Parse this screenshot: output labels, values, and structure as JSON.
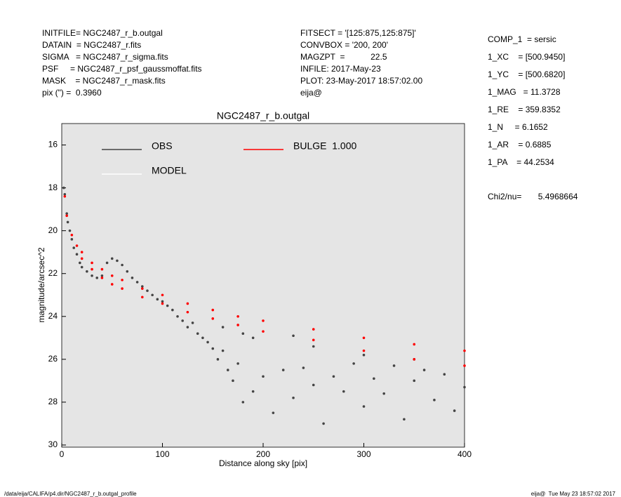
{
  "header": {
    "left": [
      "INITFILE= NGC2487_r_b.outgal",
      "DATAIN  = NGC2487_r.fits",
      "SIGMA   = NGC2487_r_sigma.fits",
      "PSF     = NGC2487_r_psf_gaussmoffat.fits",
      "MASK    = NGC2487_r_mask.fits",
      "pix (\") =  0.3960"
    ],
    "middle": [
      "FITSECT = '[125:875,125:875]'",
      "CONVBOX = '200, 200'",
      "MAGZPT  =           22.5",
      "INFILE: 2017-May-23",
      "PLOT: 23-May-2017 18:57:02.00",
      "eija@"
    ],
    "right": [
      "COMP_1  = sersic",
      "1_XC    = [500.9450]",
      "1_YC    = [500.6820]",
      "1_MAG   = 11.3728",
      "1_RE    = 359.8352",
      "1_N     = 6.1652",
      "1_AR    = 0.6885",
      "1_PA    = 44.2534"
    ],
    "chi2": "Chi2/nu=       5.4968664"
  },
  "footer": {
    "left": "/data/eija/CALIFA/p4.dir/NGC2487_r_b.outgal_profile",
    "right": "eija@  Tue May 23 18:57:02 2017"
  },
  "chart_data": {
    "type": "scatter",
    "title": "NGC2487_r_b.outgal",
    "x_label": "Distance along sky [pix]",
    "y_label": "magnitude/arcsec^2",
    "xlim": [
      0,
      400
    ],
    "ylim": [
      30.1,
      15
    ],
    "xticks": [
      0,
      100,
      200,
      300,
      400
    ],
    "yticks": [
      16,
      18,
      20,
      22,
      24,
      26,
      28,
      30
    ],
    "background": "#e5e5e5",
    "series": [
      {
        "name": "OBS",
        "color": "#444444",
        "x": [
          2,
          3,
          5,
          6,
          8,
          10,
          12,
          15,
          18,
          20,
          25,
          30,
          35,
          40,
          45,
          50,
          55,
          60,
          65,
          70,
          75,
          80,
          85,
          90,
          95,
          100,
          105,
          110,
          115,
          120,
          125,
          130,
          135,
          140,
          145,
          150,
          155,
          160,
          165,
          170,
          175,
          180,
          190,
          200,
          210,
          220,
          230,
          240,
          250,
          260,
          270,
          280,
          290,
          300,
          310,
          320,
          330,
          340,
          350,
          360,
          370,
          380,
          390,
          400,
          190,
          250,
          300,
          350,
          230,
          160,
          180
        ],
        "y": [
          18,
          18.3,
          19.2,
          19.6,
          20,
          20.4,
          20.8,
          21.1,
          21.5,
          21.7,
          21.9,
          22.1,
          22.2,
          22.1,
          21.5,
          21.3,
          21.4,
          21.6,
          21.9,
          22.2,
          22.4,
          22.6,
          22.8,
          23,
          23.2,
          23.3,
          23.5,
          23.7,
          24,
          24.2,
          24.5,
          24.3,
          24.8,
          25,
          25.2,
          25.5,
          26,
          25.6,
          26.5,
          27,
          26.2,
          28,
          27.5,
          26.8,
          28.5,
          26.5,
          27.8,
          26.4,
          27.2,
          29,
          26.8,
          27.5,
          26.2,
          28.2,
          26.9,
          27.6,
          26.3,
          28.8,
          27,
          26.5,
          27.9,
          26.7,
          28.4,
          27.3,
          25,
          25.4,
          25.8,
          26,
          24.9,
          24.5,
          24.8
        ]
      },
      {
        "name": "MODEL",
        "color": "#ffffff",
        "x": [],
        "y": []
      },
      {
        "name": "BULGE  1.000",
        "color": "#ff0000",
        "x": [
          3,
          5,
          10,
          15,
          20,
          30,
          40,
          50,
          60,
          80,
          100,
          125,
          150,
          175,
          200,
          250,
          300,
          350,
          400,
          20,
          30,
          40,
          50,
          60,
          80,
          100,
          125,
          150,
          175,
          200,
          250,
          300,
          350,
          400
        ],
        "y": [
          18.4,
          19.3,
          20.2,
          20.7,
          21.0,
          21.5,
          21.8,
          22.1,
          22.3,
          22.7,
          23.0,
          23.4,
          23.7,
          24.0,
          24.2,
          24.6,
          25.0,
          25.3,
          25.6,
          21.3,
          21.8,
          22.2,
          22.5,
          22.7,
          23.1,
          23.4,
          23.8,
          24.1,
          24.4,
          24.7,
          25.1,
          25.6,
          26.0,
          26.3
        ]
      }
    ]
  }
}
